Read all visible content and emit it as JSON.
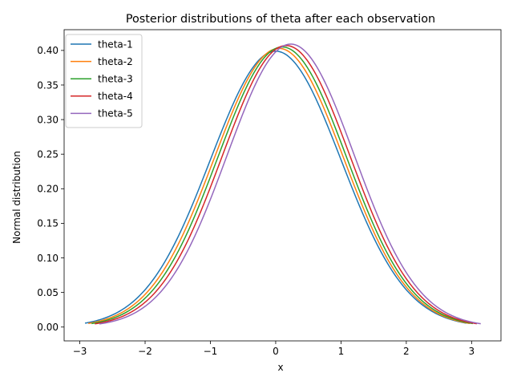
{
  "chart_data": {
    "type": "line",
    "title": "Posterior distributions of theta after each observation",
    "xlabel": "x",
    "ylabel": "Normal distribution",
    "xlim": [
      -3.24,
      3.45
    ],
    "ylim": [
      -0.02,
      0.43
    ],
    "xticks": [
      -3,
      -2,
      -1,
      0,
      1,
      2,
      3
    ],
    "xtick_labels": [
      "−3",
      "−2",
      "−1",
      "0",
      "1",
      "2",
      "3"
    ],
    "yticks": [
      0.0,
      0.05,
      0.1,
      0.15,
      0.2,
      0.25,
      0.3,
      0.35,
      0.4
    ],
    "ytick_labels": [
      "0.00",
      "0.05",
      "0.10",
      "0.15",
      "0.20",
      "0.25",
      "0.30",
      "0.35",
      "0.40"
    ],
    "grid": false,
    "legend_position": "top-left",
    "series": [
      {
        "name": "theta-1",
        "color": "#1f77b4",
        "mean": 0.0,
        "sd": 1.0,
        "x_range": [
          -2.92,
          2.92
        ]
      },
      {
        "name": "theta-2",
        "color": "#ff7f0e",
        "mean": 0.05,
        "sd": 0.99,
        "x_range": [
          -2.87,
          2.97
        ]
      },
      {
        "name": "theta-3",
        "color": "#2ca02c",
        "mean": 0.1,
        "sd": 0.985,
        "x_range": [
          -2.82,
          3.02
        ]
      },
      {
        "name": "theta-4",
        "color": "#d62728",
        "mean": 0.16,
        "sd": 0.98,
        "x_range": [
          -2.77,
          3.08
        ]
      },
      {
        "name": "theta-5",
        "color": "#9467bd",
        "mean": 0.23,
        "sd": 0.975,
        "x_range": [
          -2.7,
          3.14
        ]
      }
    ]
  }
}
